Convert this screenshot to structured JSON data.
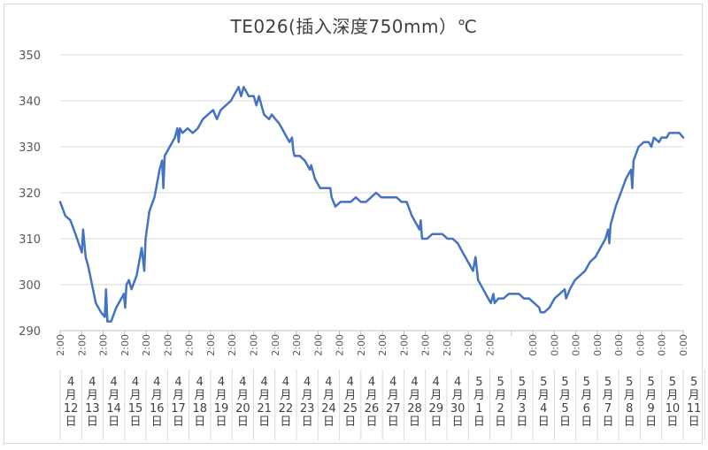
{
  "chart_data": {
    "type": "line",
    "title": "TE026(插入深度750mm）℃",
    "xlabel": "",
    "ylabel": "",
    "ylim": [
      290,
      350
    ],
    "yticks": [
      290,
      300,
      310,
      320,
      330,
      340,
      350
    ],
    "grid": true,
    "line_color": "#4472c4",
    "x_tick_labels": [
      "2:00",
      "2:00",
      "2:00",
      "2:00",
      "2:00",
      "2:00",
      "2:00",
      "2:00",
      "2:00",
      "2:00",
      "2:00",
      "2:00",
      "2:00",
      "2:00",
      "2:00",
      "2:00",
      "2:00",
      "2:00",
      "2:00",
      "2:00",
      "2:00",
      "",
      "0:00",
      "0:00",
      "0:00",
      "0:00",
      "0:00",
      "0:00",
      "0:00",
      "0:00",
      "0:00"
    ],
    "date_labels": [
      {
        "month": "4",
        "unit": "月",
        "day": "12",
        "suffix": "日"
      },
      {
        "month": "4",
        "unit": "月",
        "day": "13",
        "suffix": "日"
      },
      {
        "month": "4",
        "unit": "月",
        "day": "14",
        "suffix": "日"
      },
      {
        "month": "4",
        "unit": "月",
        "day": "15",
        "suffix": "日"
      },
      {
        "month": "4",
        "unit": "月",
        "day": "16",
        "suffix": "日"
      },
      {
        "month": "4",
        "unit": "月",
        "day": "17",
        "suffix": "日"
      },
      {
        "month": "4",
        "unit": "月",
        "day": "18",
        "suffix": "日"
      },
      {
        "month": "4",
        "unit": "月",
        "day": "19",
        "suffix": "日"
      },
      {
        "month": "4",
        "unit": "月",
        "day": "20",
        "suffix": "日"
      },
      {
        "month": "4",
        "unit": "月",
        "day": "21",
        "suffix": "日"
      },
      {
        "month": "4",
        "unit": "月",
        "day": "22",
        "suffix": "日"
      },
      {
        "month": "4",
        "unit": "月",
        "day": "23",
        "suffix": "日"
      },
      {
        "month": "4",
        "unit": "月",
        "day": "24",
        "suffix": "日"
      },
      {
        "month": "4",
        "unit": "月",
        "day": "25",
        "suffix": "日"
      },
      {
        "month": "4",
        "unit": "月",
        "day": "26",
        "suffix": "日"
      },
      {
        "month": "4",
        "unit": "月",
        "day": "27",
        "suffix": "日"
      },
      {
        "month": "4",
        "unit": "月",
        "day": "28",
        "suffix": "日"
      },
      {
        "month": "4",
        "unit": "月",
        "day": "29",
        "suffix": "日"
      },
      {
        "month": "4",
        "unit": "月",
        "day": "30",
        "suffix": "日"
      },
      {
        "month": "5",
        "unit": "月",
        "day": "1",
        "suffix": "日"
      },
      {
        "month": "5",
        "unit": "月",
        "day": "2",
        "suffix": "日"
      },
      {
        "month": "5",
        "unit": "月",
        "day": "3",
        "suffix": "日"
      },
      {
        "month": "5",
        "unit": "月",
        "day": "4",
        "suffix": "日"
      },
      {
        "month": "5",
        "unit": "月",
        "day": "5",
        "suffix": "日"
      },
      {
        "month": "5",
        "unit": "月",
        "day": "6",
        "suffix": "日"
      },
      {
        "month": "5",
        "unit": "月",
        "day": "7",
        "suffix": "日"
      },
      {
        "month": "5",
        "unit": "月",
        "day": "8",
        "suffix": "日"
      },
      {
        "month": "5",
        "unit": "月",
        "day": "9",
        "suffix": "日"
      },
      {
        "month": "5",
        "unit": "月",
        "day": "10",
        "suffix": "日"
      },
      {
        "month": "5",
        "unit": "月",
        "day": "11",
        "suffix": "日"
      }
    ],
    "series": [
      {
        "values": [
          [
            0.0,
            318
          ],
          [
            0.2,
            315
          ],
          [
            0.4,
            314
          ],
          [
            0.6,
            311
          ],
          [
            0.85,
            307
          ],
          [
            0.9,
            312
          ],
          [
            1.0,
            306
          ],
          [
            1.1,
            304
          ],
          [
            1.25,
            300
          ],
          [
            1.4,
            296
          ],
          [
            1.6,
            294
          ],
          [
            1.75,
            293
          ],
          [
            1.8,
            299
          ],
          [
            1.85,
            292
          ],
          [
            2.0,
            292
          ],
          [
            2.2,
            295
          ],
          [
            2.4,
            297
          ],
          [
            2.5,
            298
          ],
          [
            2.55,
            295
          ],
          [
            2.6,
            300
          ],
          [
            2.7,
            301
          ],
          [
            2.8,
            299
          ],
          [
            3.0,
            302
          ],
          [
            3.1,
            305
          ],
          [
            3.2,
            308
          ],
          [
            3.3,
            303
          ],
          [
            3.35,
            310
          ],
          [
            3.5,
            316
          ],
          [
            3.7,
            319
          ],
          [
            3.8,
            322
          ],
          [
            3.9,
            325
          ],
          [
            4.0,
            327
          ],
          [
            4.05,
            321
          ],
          [
            4.1,
            328
          ],
          [
            4.3,
            330
          ],
          [
            4.5,
            332
          ],
          [
            4.6,
            334
          ],
          [
            4.65,
            331
          ],
          [
            4.7,
            334
          ],
          [
            4.8,
            333
          ],
          [
            5.0,
            334
          ],
          [
            5.2,
            333
          ],
          [
            5.4,
            334
          ],
          [
            5.6,
            336
          ],
          [
            5.8,
            337
          ],
          [
            6.0,
            338
          ],
          [
            6.15,
            336
          ],
          [
            6.3,
            338
          ],
          [
            6.5,
            339
          ],
          [
            6.7,
            340
          ],
          [
            6.8,
            341
          ],
          [
            7.0,
            343
          ],
          [
            7.1,
            341
          ],
          [
            7.2,
            343
          ],
          [
            7.4,
            341
          ],
          [
            7.6,
            341
          ],
          [
            7.7,
            339
          ],
          [
            7.8,
            341
          ],
          [
            7.9,
            339
          ],
          [
            8.0,
            337
          ],
          [
            8.2,
            336
          ],
          [
            8.3,
            337
          ],
          [
            8.45,
            336
          ],
          [
            8.6,
            335
          ],
          [
            8.8,
            333
          ],
          [
            9.0,
            331
          ],
          [
            9.1,
            332
          ],
          [
            9.15,
            329
          ],
          [
            9.2,
            328
          ],
          [
            9.4,
            328
          ],
          [
            9.6,
            327
          ],
          [
            9.8,
            325
          ],
          [
            9.85,
            326
          ],
          [
            10.0,
            323
          ],
          [
            10.2,
            321
          ],
          [
            10.4,
            321
          ],
          [
            10.6,
            321
          ],
          [
            10.65,
            319
          ],
          [
            10.8,
            317
          ],
          [
            11.0,
            318
          ],
          [
            11.2,
            318
          ],
          [
            11.4,
            318
          ],
          [
            11.6,
            319
          ],
          [
            11.8,
            318
          ],
          [
            12.0,
            318
          ],
          [
            12.2,
            319
          ],
          [
            12.4,
            320
          ],
          [
            12.6,
            319
          ],
          [
            12.8,
            319
          ],
          [
            13.0,
            319
          ],
          [
            13.2,
            319
          ],
          [
            13.4,
            318
          ],
          [
            13.6,
            318
          ],
          [
            13.8,
            315
          ],
          [
            14.0,
            313
          ],
          [
            14.1,
            312
          ],
          [
            14.15,
            314
          ],
          [
            14.2,
            310
          ],
          [
            14.4,
            310
          ],
          [
            14.6,
            311
          ],
          [
            14.8,
            311
          ],
          [
            15.0,
            311
          ],
          [
            15.2,
            310
          ],
          [
            15.4,
            310
          ],
          [
            15.6,
            309
          ],
          [
            15.8,
            307
          ],
          [
            16.0,
            305
          ],
          [
            16.2,
            303
          ],
          [
            16.3,
            306
          ],
          [
            16.4,
            301
          ],
          [
            16.6,
            299
          ],
          [
            16.8,
            297
          ],
          [
            16.9,
            296
          ],
          [
            17.0,
            298
          ],
          [
            17.05,
            296
          ],
          [
            17.2,
            297
          ],
          [
            17.4,
            297
          ],
          [
            17.6,
            298
          ],
          [
            17.8,
            298
          ],
          [
            18.0,
            298
          ],
          [
            18.2,
            297
          ],
          [
            18.4,
            297
          ],
          [
            18.6,
            296
          ],
          [
            18.8,
            295
          ],
          [
            18.85,
            294
          ],
          [
            19.0,
            294
          ],
          [
            19.2,
            295
          ],
          [
            19.4,
            297
          ],
          [
            19.6,
            298
          ],
          [
            19.8,
            299
          ],
          [
            19.85,
            297
          ],
          [
            20.0,
            299
          ],
          [
            20.2,
            301
          ],
          [
            20.4,
            302
          ],
          [
            20.6,
            303
          ],
          [
            20.8,
            305
          ],
          [
            21.0,
            306
          ],
          [
            21.2,
            308
          ],
          [
            21.4,
            310
          ],
          [
            21.5,
            312
          ],
          [
            21.55,
            309
          ],
          [
            21.6,
            313
          ],
          [
            21.8,
            317
          ],
          [
            22.0,
            320
          ],
          [
            22.2,
            323
          ],
          [
            22.4,
            325
          ],
          [
            22.45,
            321
          ],
          [
            22.5,
            327
          ],
          [
            22.7,
            330
          ],
          [
            22.9,
            331
          ],
          [
            23.1,
            331
          ],
          [
            23.2,
            330
          ],
          [
            23.3,
            332
          ],
          [
            23.5,
            331
          ],
          [
            23.6,
            332
          ],
          [
            23.8,
            332
          ],
          [
            23.9,
            333
          ],
          [
            24.2,
            333
          ],
          [
            24.3,
            333
          ],
          [
            24.45,
            332
          ]
        ]
      }
    ]
  }
}
